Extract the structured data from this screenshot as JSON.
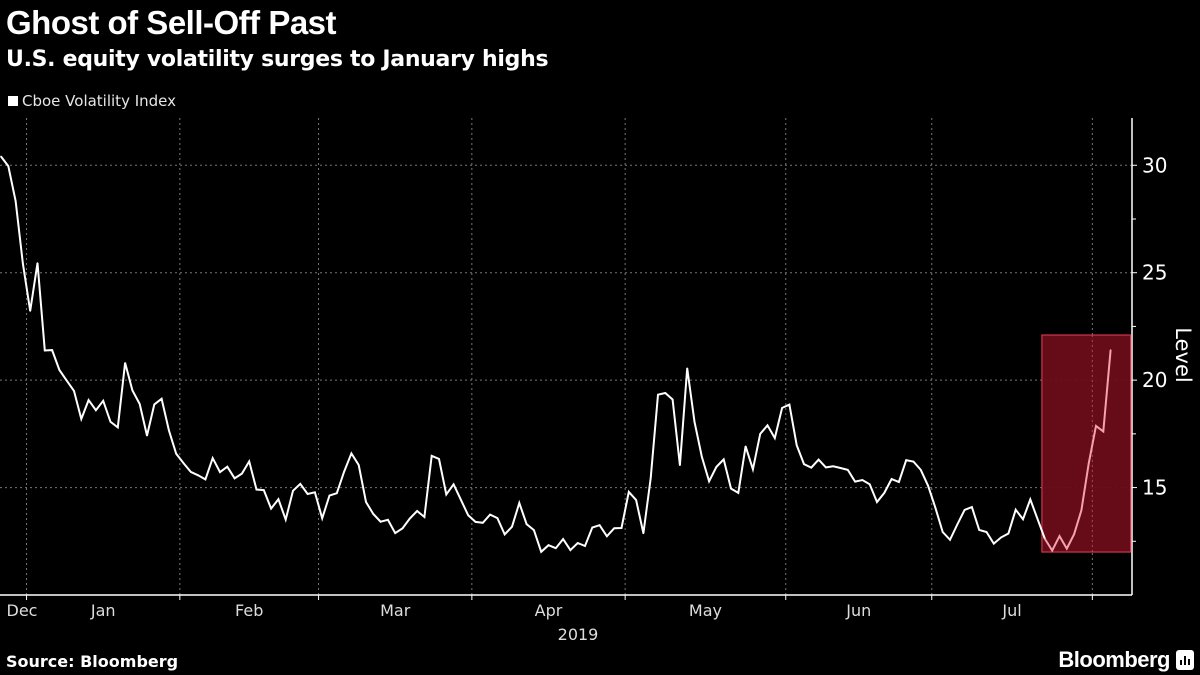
{
  "title": "Ghost of Sell-Off Past",
  "subtitle": "U.S. equity volatility surges to January highs",
  "source": "Source: Bloomberg",
  "logo_text": "Bloomberg",
  "colors": {
    "background": "#000000",
    "line": "#ffffff",
    "highlight_fill": "#6b0d1a",
    "highlight_stroke": "#d0354a",
    "highlight_line": "#f4a3ad"
  },
  "chart_data": {
    "type": "line",
    "title": "Ghost of Sell-Off Past",
    "subtitle": "U.S. equity volatility surges to January highs",
    "legend": {
      "position": "top-left",
      "entries": [
        "Cboe Volatility Index"
      ]
    },
    "ylabel": "Level",
    "xlabel": "2019",
    "ylim": [
      10,
      32.2
    ],
    "yticks": [
      15,
      20,
      25,
      30
    ],
    "y_axis_side": "right",
    "grid": true,
    "month_labels": [
      "Dec",
      "Jan",
      "Feb",
      "Mar",
      "Apr",
      "May",
      "Jun",
      "Jul"
    ],
    "year_label": "2019",
    "highlight": {
      "from": "2019-07-23",
      "to": "2019-08-07",
      "ymin": 12.0,
      "ymax": 22.1
    },
    "series": [
      {
        "name": "Cboe Volatility Index",
        "x": [
          "2018-12-26",
          "2018-12-27",
          "2018-12-28",
          "2018-12-31",
          "2019-01-02",
          "2019-01-03",
          "2019-01-04",
          "2019-01-07",
          "2019-01-08",
          "2019-01-09",
          "2019-01-10",
          "2019-01-11",
          "2019-01-14",
          "2019-01-15",
          "2019-01-16",
          "2019-01-17",
          "2019-01-18",
          "2019-01-22",
          "2019-01-23",
          "2019-01-24",
          "2019-01-25",
          "2019-01-28",
          "2019-01-29",
          "2019-01-30",
          "2019-01-31",
          "2019-02-01",
          "2019-02-04",
          "2019-02-05",
          "2019-02-06",
          "2019-02-07",
          "2019-02-08",
          "2019-02-11",
          "2019-02-12",
          "2019-02-13",
          "2019-02-14",
          "2019-02-15",
          "2019-02-19",
          "2019-02-20",
          "2019-02-21",
          "2019-02-22",
          "2019-02-25",
          "2019-02-26",
          "2019-02-27",
          "2019-02-28",
          "2019-03-01",
          "2019-03-04",
          "2019-03-05",
          "2019-03-06",
          "2019-03-07",
          "2019-03-08",
          "2019-03-11",
          "2019-03-12",
          "2019-03-13",
          "2019-03-14",
          "2019-03-15",
          "2019-03-18",
          "2019-03-19",
          "2019-03-20",
          "2019-03-21",
          "2019-03-22",
          "2019-03-25",
          "2019-03-26",
          "2019-03-27",
          "2019-03-28",
          "2019-03-29",
          "2019-04-01",
          "2019-04-02",
          "2019-04-03",
          "2019-04-04",
          "2019-04-05",
          "2019-04-08",
          "2019-04-09",
          "2019-04-10",
          "2019-04-11",
          "2019-04-12",
          "2019-04-15",
          "2019-04-16",
          "2019-04-17",
          "2019-04-18",
          "2019-04-22",
          "2019-04-23",
          "2019-04-24",
          "2019-04-25",
          "2019-04-26",
          "2019-04-29",
          "2019-04-30",
          "2019-05-01",
          "2019-05-02",
          "2019-05-03",
          "2019-05-06",
          "2019-05-07",
          "2019-05-08",
          "2019-05-09",
          "2019-05-10",
          "2019-05-13",
          "2019-05-14",
          "2019-05-15",
          "2019-05-16",
          "2019-05-17",
          "2019-05-20",
          "2019-05-21",
          "2019-05-22",
          "2019-05-23",
          "2019-05-24",
          "2019-05-28",
          "2019-05-29",
          "2019-05-30",
          "2019-05-31",
          "2019-06-03",
          "2019-06-04",
          "2019-06-05",
          "2019-06-06",
          "2019-06-07",
          "2019-06-10",
          "2019-06-11",
          "2019-06-12",
          "2019-06-13",
          "2019-06-14",
          "2019-06-17",
          "2019-06-18",
          "2019-06-19",
          "2019-06-20",
          "2019-06-21",
          "2019-06-24",
          "2019-06-25",
          "2019-06-26",
          "2019-06-27",
          "2019-06-28",
          "2019-07-01",
          "2019-07-02",
          "2019-07-03",
          "2019-07-05",
          "2019-07-08",
          "2019-07-09",
          "2019-07-10",
          "2019-07-11",
          "2019-07-12",
          "2019-07-15",
          "2019-07-16",
          "2019-07-17",
          "2019-07-18",
          "2019-07-19",
          "2019-07-22",
          "2019-07-23",
          "2019-07-24",
          "2019-07-25",
          "2019-07-26",
          "2019-07-29",
          "2019-07-30",
          "2019-07-31",
          "2019-08-01",
          "2019-08-02",
          "2019-08-05"
        ],
        "values": [
          30.41,
          29.96,
          28.34,
          25.42,
          23.22,
          25.45,
          21.38,
          21.4,
          20.47,
          19.98,
          19.5,
          18.19,
          19.07,
          18.6,
          19.04,
          18.06,
          17.8,
          20.8,
          19.52,
          18.89,
          17.42,
          18.87,
          19.13,
          17.66,
          16.57,
          16.14,
          15.73,
          15.57,
          15.38,
          16.37,
          15.72,
          15.97,
          15.43,
          15.65,
          16.22,
          14.91,
          14.88,
          14.02,
          14.46,
          13.51,
          14.85,
          15.17,
          14.7,
          14.78,
          13.57,
          14.63,
          14.74,
          15.74,
          16.59,
          16.05,
          14.33,
          13.77,
          13.41,
          13.5,
          12.88,
          13.1,
          13.56,
          13.91,
          13.63,
          16.48,
          16.33,
          14.68,
          15.15,
          14.43,
          13.71,
          13.4,
          13.36,
          13.74,
          13.58,
          12.82,
          13.18,
          14.28,
          13.3,
          13.02,
          12.01,
          12.32,
          12.18,
          12.6,
          12.09,
          12.42,
          12.28,
          13.14,
          13.25,
          12.73,
          13.11,
          13.12,
          14.8,
          14.42,
          12.87,
          15.44,
          19.32,
          19.4,
          19.1,
          16.04,
          20.55,
          18.06,
          16.44,
          15.29,
          15.96,
          16.31,
          14.95,
          14.75,
          16.92,
          15.85,
          17.5,
          17.9,
          17.3,
          18.71,
          18.86,
          16.97,
          16.09,
          15.93,
          16.3,
          15.94,
          15.99,
          15.91,
          15.82,
          15.28,
          15.35,
          15.15,
          14.33,
          14.75,
          15.4,
          15.26,
          16.28,
          16.21,
          15.82,
          15.08,
          14.06,
          12.93,
          12.57,
          13.28,
          13.96,
          14.09,
          13.03,
          12.93,
          12.39,
          12.68,
          12.86,
          13.97,
          13.53,
          14.45,
          13.53,
          12.61,
          12.07,
          12.74,
          12.16,
          12.83,
          13.94,
          16.12,
          17.87,
          17.61,
          21.4
        ]
      }
    ]
  }
}
